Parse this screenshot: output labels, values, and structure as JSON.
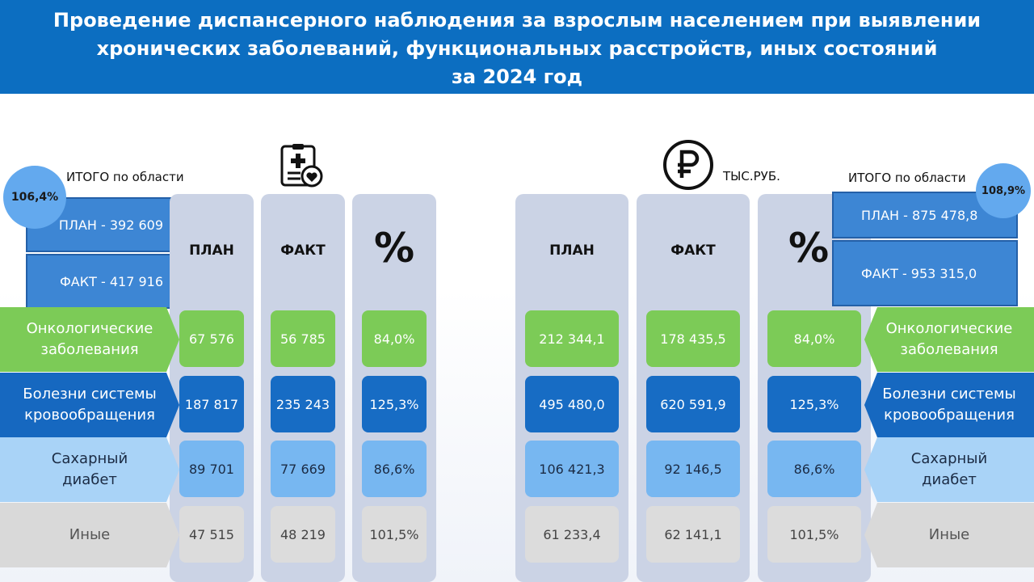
{
  "title": {
    "line1": "Проведение диспансерного наблюдения за взрослым населением при выявлении",
    "line2": "хронических заболеваний, функциональных расстройств, иных состояний",
    "line3": "за 2024 год"
  },
  "left_panel": {
    "total_label": "ИТОГО по области",
    "total_percent": "106,4%",
    "plan_total": "ПЛАН - 392 609",
    "fact_total": "ФАКТ - 417 916",
    "icon": "medical-record-heart-icon",
    "headers": {
      "plan": "ПЛАН",
      "fact": "ФАКТ",
      "percent": "%"
    },
    "rows": [
      {
        "plan": "67 576",
        "fact": "56 785",
        "percent": "84,0%"
      },
      {
        "plan": "187 817",
        "fact": "235 243",
        "percent": "125,3%"
      },
      {
        "plan": "89 701",
        "fact": "77 669",
        "percent": "86,6%"
      },
      {
        "plan": "47 515",
        "fact": "48 219",
        "percent": "101,5%"
      }
    ]
  },
  "right_panel": {
    "unit_label": "ТЫС.РУБ.",
    "icon": "ruble-icon",
    "total_label": "ИТОГО по области",
    "total_percent": "108,9%",
    "plan_total": "ПЛАН - 875 478,8",
    "fact_total": "ФАКТ - 953 315,0",
    "headers": {
      "plan": "ПЛАН",
      "fact": "ФАКТ",
      "percent": "%"
    },
    "rows": [
      {
        "plan": "212 344,1",
        "fact": "178 435,5",
        "percent": "84,0%"
      },
      {
        "plan": "495 480,0",
        "fact": "620 591,9",
        "percent": "125,3%"
      },
      {
        "plan": "106 421,3",
        "fact": "92 146,5",
        "percent": "86,6%"
      },
      {
        "plan": "61 233,4",
        "fact": "62 141,1",
        "percent": "101,5%"
      }
    ]
  },
  "categories": [
    {
      "line1": "Онкологические",
      "line2": "заболевания"
    },
    {
      "line1": "Болезни системы",
      "line2": "кровообращения"
    },
    {
      "line1": "Сахарный",
      "line2": "диабет"
    },
    {
      "line1": "Иные",
      "line2": ""
    }
  ],
  "colors": {
    "header_bg": "#0c6ec1",
    "oncology": "#7ccb57",
    "circulatory": "#176cc4",
    "diabetes": "#77b7f1",
    "other": "#dcdcdc",
    "column_bg": "#cbd3e5"
  }
}
